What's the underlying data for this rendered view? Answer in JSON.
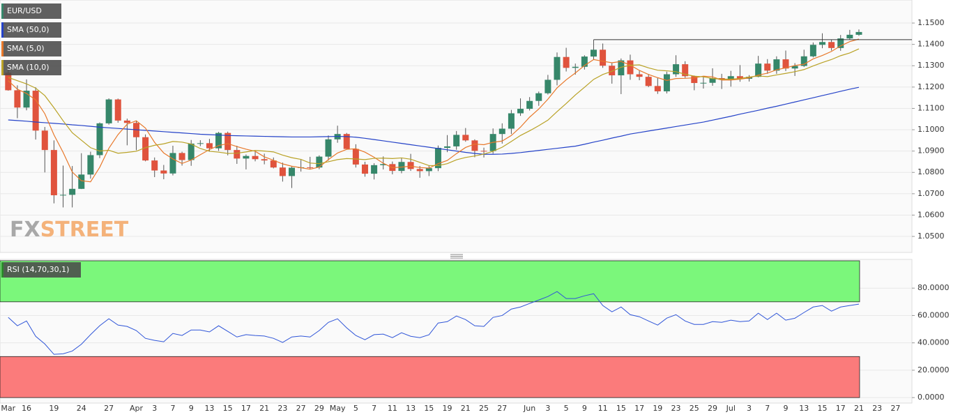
{
  "chart_data": [
    {
      "type": "candlestick",
      "name": "EUR/USD",
      "up_color": "#36876a",
      "down_color": "#e0533d",
      "wick_color": "#555555",
      "open": [
        1.1267,
        1.1185,
        1.1104,
        1.1183,
        1.0996,
        1.0905,
        1.0693,
        1.0695,
        1.0723,
        1.079,
        1.0881,
        1.103,
        1.1142,
        1.1043,
        1.1032,
        1.0965,
        1.0856,
        1.0809,
        1.0795,
        1.0891,
        1.0858,
        1.0935,
        1.0937,
        1.0913,
        1.0985,
        1.0905,
        1.0865,
        1.0877,
        1.0862,
        1.0856,
        1.0823,
        1.0783,
        1.0822,
        1.0824,
        1.0823,
        1.0874,
        1.0955,
        1.098,
        1.091,
        1.0837,
        1.0794,
        1.0834,
        1.0839,
        1.0807,
        1.0849,
        1.0816,
        1.0806,
        1.082,
        1.0915,
        1.0922,
        1.0976,
        1.095,
        1.0901,
        1.09,
        1.098,
        1.1005,
        1.1077,
        1.1098,
        1.1135,
        1.1171,
        1.1234,
        1.1341,
        1.129,
        1.1295,
        1.1343,
        1.1375,
        1.13,
        1.1255,
        1.1325,
        1.126,
        1.1248,
        1.1205,
        1.118,
        1.126,
        1.1307,
        1.1251,
        1.1219,
        1.122,
        1.1242,
        1.1234,
        1.1251,
        1.1239,
        1.1248,
        1.131,
        1.1277,
        1.133,
        1.1287,
        1.1299,
        1.1344,
        1.1398,
        1.1411,
        1.1383,
        1.1428,
        1.1445
      ],
      "high": [
        1.1316,
        1.1208,
        1.1236,
        1.1199,
        1.1013,
        1.095,
        1.0832,
        1.083,
        1.089,
        1.0897,
        1.1034,
        1.1147,
        1.1146,
        1.1052,
        1.1041,
        1.0978,
        1.087,
        1.0835,
        1.0925,
        1.0897,
        1.0952,
        1.0951,
        1.0957,
        1.099,
        1.0991,
        1.0925,
        1.0884,
        1.0897,
        1.0888,
        1.087,
        1.0846,
        1.0827,
        1.0859,
        1.0873,
        1.088,
        1.0973,
        1.1019,
        1.0985,
        1.0932,
        1.085,
        1.0843,
        1.0875,
        1.0851,
        1.0866,
        1.0887,
        1.083,
        1.0831,
        1.0926,
        1.0975,
        1.0994,
        1.1008,
        1.0955,
        1.0916,
        1.1006,
        1.103,
        1.1093,
        1.1147,
        1.1153,
        1.1179,
        1.1257,
        1.1362,
        1.1384,
        1.131,
        1.1349,
        1.1422,
        1.1404,
        1.1312,
        1.1334,
        1.1352,
        1.1276,
        1.1261,
        1.1242,
        1.1272,
        1.1349,
        1.1321,
        1.1254,
        1.1247,
        1.1288,
        1.1262,
        1.1276,
        1.1303,
        1.1256,
        1.1346,
        1.1331,
        1.1344,
        1.1371,
        1.1312,
        1.1375,
        1.1409,
        1.1452,
        1.1422,
        1.1444,
        1.1468,
        1.147
      ],
      "low": [
        1.1183,
        1.1054,
        1.1091,
        1.0954,
        1.08,
        1.0655,
        1.0636,
        1.0636,
        1.0722,
        1.0771,
        1.0867,
        1.1024,
        1.1033,
        1.0927,
        1.0904,
        1.0852,
        1.0778,
        1.0768,
        1.0786,
        1.0832,
        1.0831,
        1.0923,
        1.0897,
        1.0901,
        1.088,
        1.084,
        1.0814,
        1.0852,
        1.0838,
        1.0819,
        1.0757,
        1.0727,
        1.0804,
        1.0815,
        1.0815,
        1.0855,
        1.0939,
        1.0909,
        1.0823,
        1.078,
        1.0767,
        1.0814,
        1.0791,
        1.0796,
        1.0807,
        1.0775,
        1.0783,
        1.0806,
        1.0895,
        1.0906,
        1.0944,
        1.0871,
        1.087,
        1.0888,
        1.0935,
        1.098,
        1.1065,
        1.109,
        1.1112,
        1.1165,
        1.1208,
        1.1273,
        1.1258,
        1.1282,
        1.1327,
        1.129,
        1.1216,
        1.1167,
        1.1234,
        1.1232,
        1.12,
        1.1168,
        1.117,
        1.1248,
        1.1243,
        1.1185,
        1.1193,
        1.1206,
        1.1191,
        1.1202,
        1.1225,
        1.1226,
        1.1246,
        1.1262,
        1.1262,
        1.1275,
        1.1252,
        1.1294,
        1.1339,
        1.1382,
        1.1371,
        1.137,
        1.1422,
        1.144
      ],
      "close": [
        1.1185,
        1.1104,
        1.1183,
        1.0996,
        1.0905,
        1.0693,
        1.0695,
        1.0723,
        1.079,
        1.0881,
        1.103,
        1.1142,
        1.1043,
        1.1032,
        1.0965,
        1.0856,
        1.0809,
        1.0795,
        1.0891,
        1.0858,
        1.0935,
        1.0937,
        1.0913,
        1.0985,
        1.0905,
        1.0865,
        1.0877,
        1.0862,
        1.0856,
        1.0823,
        1.0783,
        1.0822,
        1.0824,
        1.0823,
        1.0874,
        1.0955,
        1.098,
        1.091,
        1.0837,
        1.0794,
        1.0834,
        1.0839,
        1.0807,
        1.0849,
        1.0816,
        1.0806,
        1.082,
        1.0915,
        1.0922,
        1.0976,
        1.095,
        1.0901,
        1.09,
        1.098,
        1.1005,
        1.1077,
        1.1098,
        1.1135,
        1.1171,
        1.1234,
        1.1341,
        1.129,
        1.1295,
        1.1343,
        1.1375,
        1.13,
        1.1255,
        1.1325,
        1.126,
        1.1248,
        1.1205,
        1.118,
        1.126,
        1.1307,
        1.1251,
        1.1219,
        1.122,
        1.1242,
        1.1234,
        1.1251,
        1.1239,
        1.1248,
        1.131,
        1.1277,
        1.133,
        1.1287,
        1.1299,
        1.1344,
        1.1398,
        1.1411,
        1.1383,
        1.1428,
        1.1445,
        1.1458
      ],
      "series": [
        {
          "name": "SMA (50,0)",
          "color": "#2442c8",
          "values": [
            1.1046,
            1.1043,
            1.104,
            1.1036,
            1.1033,
            1.103,
            1.1027,
            1.1023,
            1.102,
            1.1016,
            1.1012,
            1.1009,
            1.1006,
            1.1003,
            1.1,
            1.0997,
            1.0994,
            1.0991,
            1.0988,
            1.0985,
            1.0982,
            1.0979,
            1.0977,
            1.0975,
            1.0973,
            1.0972,
            1.0971,
            1.097,
            1.0969,
            1.0968,
            1.0967,
            1.0966,
            1.0966,
            1.0966,
            1.0967,
            1.0968,
            1.0969,
            1.0968,
            1.0965,
            1.096,
            1.0954,
            1.0948,
            1.0942,
            1.0936,
            1.093,
            1.0924,
            1.0918,
            1.0912,
            1.0906,
            1.09,
            1.0894,
            1.0889,
            1.0885,
            1.0885,
            1.0886,
            1.0889,
            1.0893,
            1.0898,
            1.0903,
            1.0908,
            1.0913,
            1.0918,
            1.0923,
            1.0932,
            1.0942,
            1.0951,
            1.0961,
            1.097,
            1.098,
            1.0987,
            1.0994,
            1.1001,
            1.1008,
            1.1015,
            1.1022,
            1.1029,
            1.1036,
            1.1045,
            1.1054,
            1.1063,
            1.1073,
            1.1082,
            1.1091,
            1.1101,
            1.111,
            1.112,
            1.113,
            1.114,
            1.115,
            1.116,
            1.117,
            1.118,
            1.119,
            1.1199
          ]
        },
        {
          "name": "SMA (5,0)",
          "color": "#e8782a",
          "values": [
            1.123,
            1.119,
            1.117,
            1.114,
            1.1075,
            1.0976,
            1.0894,
            1.0802,
            1.0761,
            1.0756,
            1.0824,
            1.0913,
            1.0977,
            1.1026,
            1.1042,
            1.1008,
            1.0941,
            1.0891,
            1.0863,
            1.0842,
            1.0858,
            1.0883,
            1.0907,
            1.0926,
            1.0935,
            1.0921,
            1.0909,
            1.0899,
            1.0873,
            1.0857,
            1.084,
            1.0829,
            1.0822,
            1.0815,
            1.0825,
            1.086,
            1.0891,
            1.0908,
            1.0911,
            1.0895,
            1.0871,
            1.0843,
            1.0822,
            1.0825,
            1.0829,
            1.0823,
            1.082,
            1.0841,
            1.0856,
            1.0888,
            1.0917,
            1.0933,
            1.093,
            1.0941,
            1.0947,
            1.0973,
            1.1012,
            1.1059,
            1.1097,
            1.1143,
            1.1196,
            1.1234,
            1.1266,
            1.1301,
            1.1329,
            1.1321,
            1.1314,
            1.132,
            1.1303,
            1.1278,
            1.1259,
            1.1244,
            1.1231,
            1.124,
            1.1241,
            1.1243,
            1.1251,
            1.1248,
            1.1233,
            1.1233,
            1.1237,
            1.1243,
            1.1256,
            1.1265,
            1.1281,
            1.129,
            1.1301,
            1.1307,
            1.1332,
            1.1348,
            1.1367,
            1.1393,
            1.1413,
            1.1425
          ]
        },
        {
          "name": "SMA (10,0)",
          "color": "#b9a226",
          "values": [
            1.1245,
            1.123,
            1.1215,
            1.1195,
            1.116,
            1.1103,
            1.1042,
            1.0986,
            1.0951,
            1.0916,
            1.09,
            1.0904,
            1.089,
            1.0894,
            1.0899,
            1.0916,
            1.0927,
            1.0934,
            1.0945,
            1.0942,
            1.0933,
            1.0912,
            1.0899,
            1.0895,
            1.0889,
            1.089,
            1.0896,
            1.0903,
            1.09,
            1.0896,
            1.0881,
            1.0869,
            1.0861,
            1.0844,
            1.0841,
            1.085,
            1.086,
            1.0865,
            1.0863,
            1.086,
            1.0866,
            1.0867,
            1.0865,
            1.0868,
            1.0862,
            1.0847,
            1.0832,
            1.0832,
            1.0841,
            1.0859,
            1.087,
            1.0877,
            1.0886,
            1.0899,
            1.0918,
            1.0945,
            1.0973,
            1.0995,
            1.1019,
            1.1045,
            1.1085,
            1.1123,
            1.1163,
            1.1199,
            1.1236,
            1.1259,
            1.1274,
            1.1293,
            1.1302,
            1.1304,
            1.129,
            1.1279,
            1.1276,
            1.1272,
            1.126,
            1.1251,
            1.1248,
            1.124,
            1.1237,
            1.1237,
            1.124,
            1.1247,
            1.1252,
            1.1249,
            1.1257,
            1.1264,
            1.1272,
            1.1282,
            1.1299,
            1.1315,
            1.1329,
            1.1347,
            1.136,
            1.1379
          ]
        }
      ],
      "level_line": 1.1422,
      "ylim": [
        1.0425,
        1.1608
      ],
      "yticks": [
        {
          "value": 1.05,
          "label": "1.0500"
        },
        {
          "value": 1.06,
          "label": "1.0600"
        },
        {
          "value": 1.07,
          "label": "1.0700"
        },
        {
          "value": 1.08,
          "label": "1.0800"
        },
        {
          "value": 1.09,
          "label": "1.0900"
        },
        {
          "value": 1.1,
          "label": "1.1000"
        },
        {
          "value": 1.11,
          "label": "1.1100"
        },
        {
          "value": 1.12,
          "label": "1.1200"
        },
        {
          "value": 1.13,
          "label": "1.1300"
        },
        {
          "value": 1.14,
          "label": "1.1400"
        },
        {
          "value": 1.15,
          "label": "1.1500"
        }
      ],
      "grid": true,
      "watermark": {
        "left": "FX",
        "right": "STREET"
      }
    },
    {
      "type": "line",
      "name": "RSI (14,70,30,1)",
      "color": "#2f55d8",
      "values": [
        58.6,
        52.5,
        56,
        44.8,
        39.2,
        31.6,
        32,
        34,
        39,
        46,
        52.5,
        57.6,
        53,
        52,
        49,
        43.3,
        41.8,
        40.8,
        46.9,
        45.4,
        49.4,
        49.4,
        48,
        52.5,
        48.4,
        44.3,
        46,
        45.4,
        45,
        43.3,
        40.3,
        44.3,
        45,
        44.3,
        49,
        55,
        57.6,
        51,
        45.4,
        42.3,
        46,
        46.4,
        43.8,
        47.4,
        44.8,
        43.8,
        45.9,
        54.5,
        55.5,
        59.6,
        57,
        52.5,
        52,
        58.6,
        60,
        64.7,
        66.2,
        68.8,
        71.3,
        73.9,
        77.5,
        72.4,
        72.4,
        74.4,
        75.9,
        67.3,
        62.7,
        66.2,
        60.6,
        59.1,
        56,
        53,
        58.1,
        60.6,
        56,
        53.5,
        53.5,
        55.5,
        55,
        56.6,
        55.5,
        56,
        61.7,
        57,
        61.7,
        56.6,
        58,
        62.2,
        66.2,
        67.3,
        63.2,
        66.2,
        67.3,
        68.3
      ],
      "bands": [
        {
          "from": 70,
          "to": 100,
          "color": "#7bf77b"
        },
        {
          "from": 0,
          "to": 30,
          "color": "#fb7b7b"
        }
      ],
      "ylim": [
        -4,
        101
      ],
      "yticks": [
        {
          "value": 0,
          "label": "0.0000"
        },
        {
          "value": 20,
          "label": "20.0000"
        },
        {
          "value": 40,
          "label": "40.0000"
        },
        {
          "value": 60,
          "label": "60.0000"
        },
        {
          "value": 80,
          "label": "80.0000"
        }
      ],
      "grid": true,
      "xticks": [
        "Mar",
        "16",
        "19",
        "24",
        "27",
        "Apr",
        "3",
        "7",
        "9",
        "13",
        "15",
        "17",
        "21",
        "23",
        "27",
        "29",
        "May",
        "5",
        "7",
        "11",
        "13",
        "15",
        "19",
        "21",
        "25",
        "27",
        "Jun",
        "3",
        "5",
        "9",
        "11",
        "15",
        "17",
        "19",
        "23",
        "25",
        "29",
        "Jul",
        "3",
        "7",
        "9",
        "13",
        "15",
        "17",
        "21",
        "23",
        "27"
      ]
    }
  ]
}
